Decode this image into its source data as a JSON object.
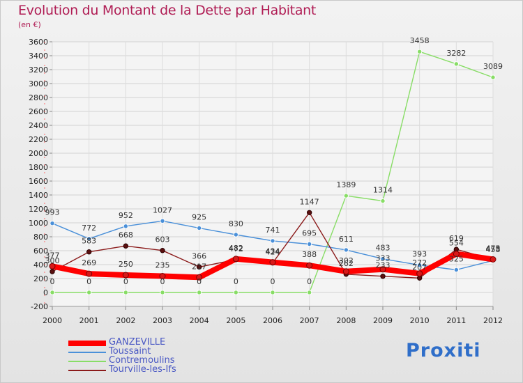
{
  "header": {
    "title": "Evolution du Montant de la Dette par Habitant",
    "subtitle": "(en €)"
  },
  "logo": {
    "text": "Proxiti"
  },
  "chart_data": {
    "type": "line",
    "x": [
      "2000",
      "2001",
      "2002",
      "2003",
      "2004",
      "2005",
      "2006",
      "2007",
      "2008",
      "2009",
      "2010",
      "2011",
      "2012"
    ],
    "ylim": [
      -200,
      3600
    ],
    "yticks": [
      -200,
      0,
      200,
      400,
      600,
      800,
      1000,
      1200,
      1400,
      1600,
      1800,
      2000,
      2200,
      2400,
      2600,
      2800,
      3000,
      3200,
      3400,
      3600
    ],
    "grid": true,
    "legend_position": "bottom-left",
    "series": [
      {
        "name": "GANZEVILLE",
        "color": "#ff0000",
        "values": [
          377,
          269,
          250,
          235,
          217,
          482,
          434,
          388,
          302,
          333,
          272,
          554,
          475
        ],
        "labels": [
          "377",
          "269",
          "250",
          "235",
          "217",
          "482",
          "434",
          "388",
          "302",
          "333",
          "272",
          "554",
          "475"
        ]
      },
      {
        "name": "Toussaint",
        "color": "#4a90d9",
        "values": [
          993,
          772,
          952,
          1027,
          925,
          830,
          741,
          695,
          611,
          483,
          393,
          325,
          458
        ],
        "labels": [
          "993",
          "772",
          "952",
          "1027",
          "925",
          "830",
          "741",
          "695",
          "611",
          "483",
          "393",
          "325",
          "458"
        ]
      },
      {
        "name": "Contremoulins",
        "color": "#88dd66",
        "values": [
          0,
          0,
          0,
          0,
          0,
          0,
          0,
          0,
          1389,
          1314,
          3458,
          3282,
          3089
        ],
        "labels": [
          "0",
          "0",
          "0",
          "0",
          "0",
          "0",
          "0",
          "0",
          "1389",
          "1314",
          "3458",
          "3282",
          "3089"
        ]
      },
      {
        "name": "Tourville-les-Ifs",
        "color": "#8b1a1a",
        "values": [
          300,
          583,
          668,
          603,
          366,
          472,
          424,
          1147,
          262,
          233,
          207,
          619,
          473
        ],
        "labels": [
          "300",
          "583",
          "668",
          "603",
          "366",
          "472",
          "424",
          "1147",
          "262",
          "233",
          "207",
          "619",
          "473"
        ]
      }
    ]
  }
}
